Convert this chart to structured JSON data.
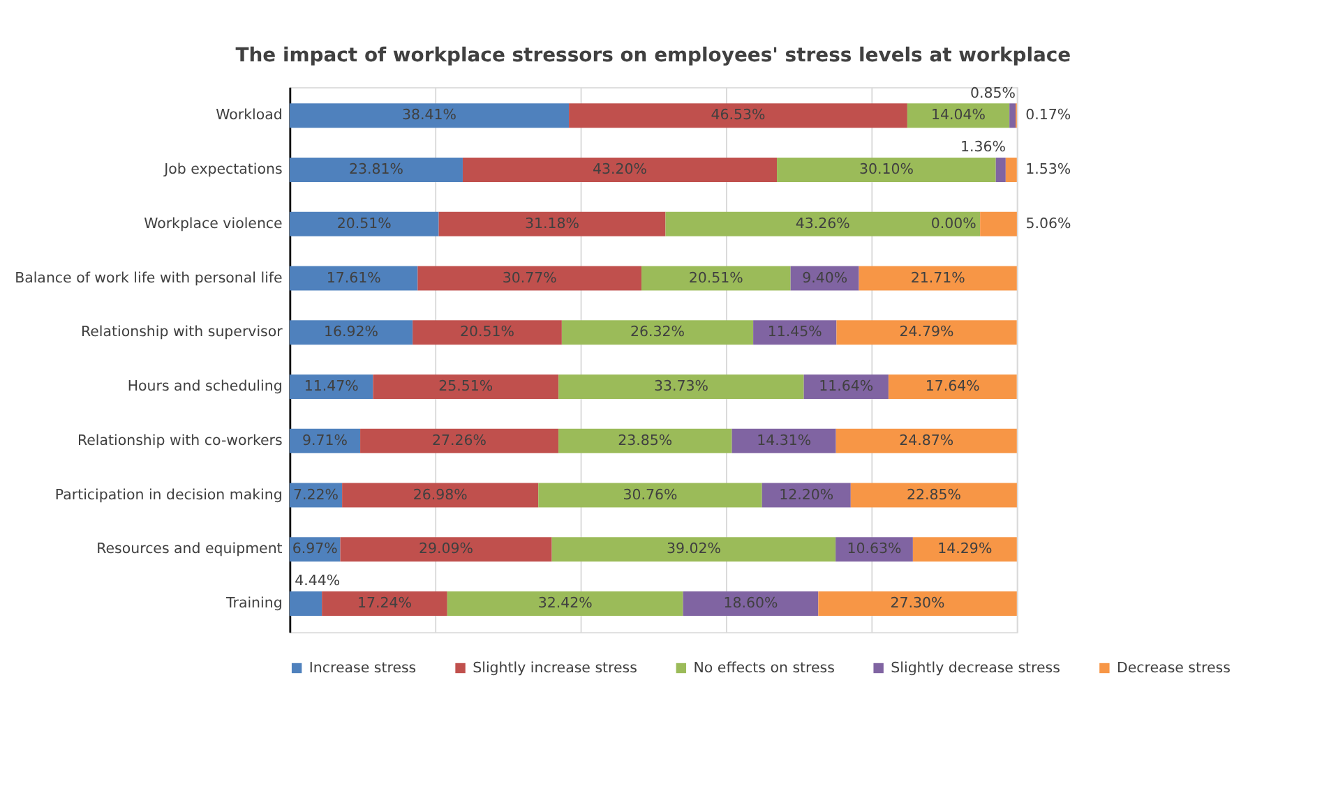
{
  "chart_data": {
    "type": "bar",
    "orientation": "horizontal",
    "stacked": true,
    "title": "The impact of workplace stressors on employees' stress levels at workplace",
    "categories": [
      "Workload",
      "Job expectations",
      "Workplace violence",
      "Balance of work life with personal life",
      "Relationship with supervisor",
      "Hours and scheduling",
      "Relationship with co-workers",
      "Participation in decision making",
      "Resources and equipment",
      "Training"
    ],
    "series": [
      {
        "name": "Increase stress",
        "color": "#4f81bd",
        "values": [
          38.41,
          23.81,
          20.51,
          17.61,
          16.92,
          11.47,
          9.71,
          7.22,
          6.97,
          4.44
        ],
        "value_labels": [
          "38.41%",
          "23.81%",
          "20.51%",
          "17.61%",
          "16.92%",
          "11.47%",
          "9.71%",
          "7.22%",
          "6.97%",
          "4.44%"
        ]
      },
      {
        "name": "Slightly increase stress",
        "color": "#c0504d",
        "values": [
          46.53,
          43.2,
          31.18,
          30.77,
          20.51,
          25.51,
          27.26,
          26.98,
          29.09,
          17.24
        ],
        "value_labels": [
          "46.53%",
          "43.20%",
          "31.18%",
          "30.77%",
          "20.51%",
          "25.51%",
          "27.26%",
          "26.98%",
          "29.09%",
          "17.24%"
        ]
      },
      {
        "name": "No effects on stress",
        "color": "#9bbb59",
        "values": [
          14.04,
          30.1,
          43.26,
          20.51,
          26.32,
          33.73,
          23.85,
          30.76,
          39.02,
          32.42
        ],
        "value_labels": [
          "14.04%",
          "30.10%",
          "43.26%",
          "20.51%",
          "26.32%",
          "33.73%",
          "23.85%",
          "30.76%",
          "39.02%",
          "32.42%"
        ]
      },
      {
        "name": "Slightly decrease stress",
        "color": "#8064a2",
        "values": [
          0.85,
          1.36,
          0.0,
          9.4,
          11.45,
          11.64,
          14.31,
          12.2,
          10.63,
          18.6
        ],
        "value_labels": [
          "0.85%",
          "1.36%",
          "0.00%",
          "9.40%",
          "11.45%",
          "11.64%",
          "14.31%",
          "12.20%",
          "10.63%",
          "18.60%"
        ]
      },
      {
        "name": "Decrease stress",
        "color": "#f79646",
        "values": [
          0.17,
          1.53,
          5.06,
          21.71,
          24.79,
          17.64,
          24.87,
          22.85,
          14.29,
          27.3
        ],
        "value_labels": [
          "0.17%",
          "1.53%",
          "5.06%",
          "21.71%",
          "24.79%",
          "17.64%",
          "24.87%",
          "22.85%",
          "14.29%",
          "27.30%"
        ]
      }
    ],
    "xlim": [
      0,
      100
    ],
    "xticks": [
      {
        "value": 0,
        "label": null
      },
      {
        "value": 20,
        "label": null
      },
      {
        "value": 40,
        "label": null
      },
      {
        "value": 60,
        "label": null
      },
      {
        "value": 80,
        "label": null
      },
      {
        "value": 100,
        "label": null
      }
    ],
    "grid": "x",
    "legend": "bottom",
    "tick_labels": "y"
  }
}
